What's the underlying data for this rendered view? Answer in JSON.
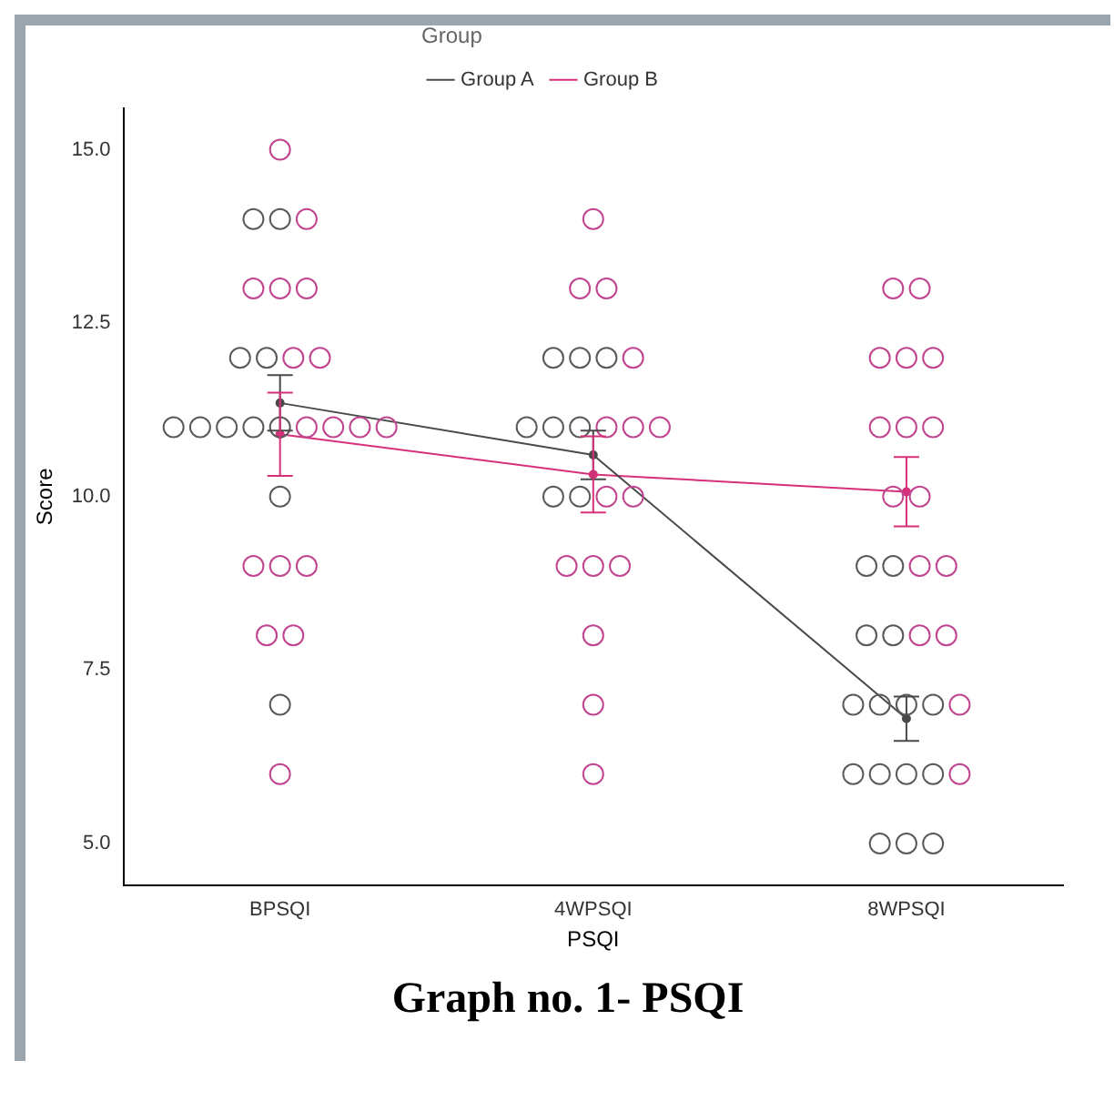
{
  "chart_data": {
    "type": "line",
    "title": "Graph no. 1- PSQI",
    "xlabel": "PSQI",
    "ylabel": "Score",
    "legend_title": "Group",
    "legend": "top",
    "grid": false,
    "marker": "circle",
    "line_style": "solid",
    "categories": [
      "BPSQI",
      "4WPSQI",
      "8WPSQI"
    ],
    "ylim": [
      4.4,
      15.6
    ],
    "yticks": [
      {
        "value": 5,
        "label": "5.0"
      },
      {
        "value": 7.5,
        "label": "7.5"
      },
      {
        "value": 10,
        "label": "10.0"
      },
      {
        "value": 12.5,
        "label": "12.5"
      },
      {
        "value": 15,
        "label": "15.0"
      }
    ],
    "series": [
      {
        "type": "scatter",
        "color": "#5a5a5a",
        "x": [
          "BPSQI",
          "BPSQI",
          "BPSQI",
          "BPSQI",
          "BPSQI",
          "BPSQI",
          "BPSQI",
          "BPSQI",
          "BPSQI",
          "BPSQI",
          "BPSQI",
          "4WPSQI",
          "4WPSQI",
          "4WPSQI",
          "4WPSQI",
          "4WPSQI",
          "4WPSQI",
          "4WPSQI",
          "4WPSQI",
          "8WPSQI",
          "8WPSQI",
          "8WPSQI",
          "8WPSQI",
          "8WPSQI",
          "8WPSQI",
          "8WPSQI",
          "8WPSQI",
          "8WPSQI",
          "8WPSQI",
          "8WPSQI",
          "8WPSQI",
          "8WPSQI",
          "8WPSQI",
          "8WPSQI"
        ],
        "values": [
          14,
          14,
          12,
          12,
          11,
          11,
          11,
          11,
          11,
          10,
          7,
          12,
          12,
          12,
          11,
          11,
          11,
          10,
          10,
          9,
          9,
          8,
          8,
          7,
          7,
          7,
          7,
          6,
          6,
          6,
          6,
          5,
          5,
          5
        ]
      },
      {
        "type": "scatter",
        "color": "#c0448f",
        "x": [
          "BPSQI",
          "BPSQI",
          "BPSQI",
          "BPSQI",
          "BPSQI",
          "BPSQI",
          "BPSQI",
          "BPSQI",
          "BPSQI",
          "BPSQI",
          "BPSQI",
          "BPSQI",
          "BPSQI",
          "BPSQI",
          "BPSQI",
          "BPSQI",
          "BPSQI",
          "4WPSQI",
          "4WPSQI",
          "4WPSQI",
          "4WPSQI",
          "4WPSQI",
          "4WPSQI",
          "4WPSQI",
          "4WPSQI",
          "4WPSQI",
          "4WPSQI",
          "4WPSQI",
          "4WPSQI",
          "4WPSQI",
          "4WPSQI",
          "4WPSQI",
          "8WPSQI",
          "8WPSQI",
          "8WPSQI",
          "8WPSQI",
          "8WPSQI",
          "8WPSQI",
          "8WPSQI",
          "8WPSQI",
          "8WPSQI",
          "8WPSQI",
          "8WPSQI",
          "8WPSQI",
          "8WPSQI",
          "8WPSQI",
          "8WPSQI",
          "8WPSQI"
        ],
        "values": [
          15,
          14,
          13,
          13,
          13,
          12,
          12,
          11,
          11,
          11,
          11,
          9,
          9,
          9,
          8,
          8,
          6,
          14,
          13,
          13,
          12,
          11,
          11,
          11,
          10,
          10,
          9,
          9,
          9,
          8,
          7,
          6,
          13,
          13,
          12,
          12,
          12,
          11,
          11,
          11,
          10,
          10,
          9,
          9,
          8,
          8,
          7,
          6
        ]
      },
      {
        "type": "line",
        "name": "Group A",
        "color": "#4a4a4a",
        "values": [
          11.35,
          10.6,
          6.8
        ],
        "errors": [
          0.4,
          0.35,
          0.32
        ]
      },
      {
        "type": "line",
        "name": "Group B",
        "color": "#d6307a",
        "values": [
          10.9,
          10.32,
          10.07
        ],
        "errors": [
          0.6,
          0.55,
          0.5
        ]
      }
    ]
  }
}
